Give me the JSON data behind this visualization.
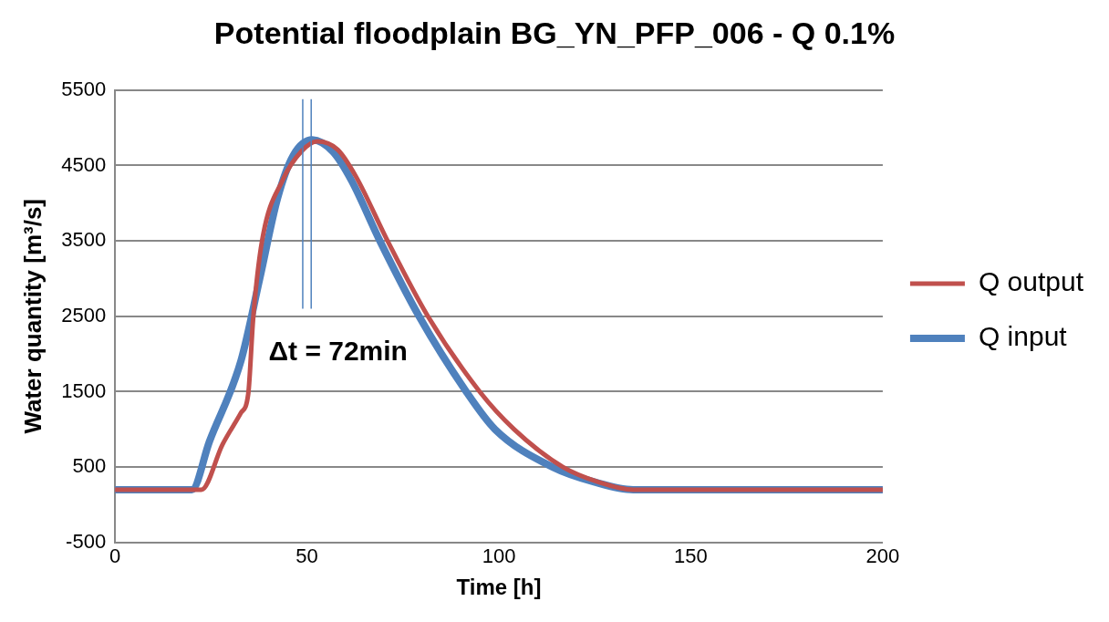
{
  "chart_data": {
    "type": "line",
    "title": "Potential floodplain BG_YN_PFP_006 - Q 0.1%",
    "xlabel": "Time [h]",
    "ylabel": "Water quantity [m³/s]",
    "xlim": [
      0,
      200
    ],
    "xticks": [
      0,
      50,
      100,
      150,
      200
    ],
    "ylim": [
      -500,
      5500
    ],
    "yticks": [
      -500,
      500,
      1500,
      2500,
      3500,
      4500,
      5500
    ],
    "grid": "y",
    "legend": "right",
    "marker": "none",
    "line_style": "solid",
    "annotations": [
      "Δt = 72min"
    ],
    "ref_lines": [
      {
        "axis": "x",
        "value": 48.9,
        "color": "#4f81bd"
      },
      {
        "axis": "x",
        "value": 51.1,
        "color": "#4f81bd"
      }
    ],
    "series": [
      {
        "name": "Q input",
        "color": "#4f81bd",
        "x": [
          0,
          20,
          24.6,
          32.8,
          37.7,
          42.3,
          46.4,
          51.4,
          56.8,
          61.5,
          69,
          79.2,
          91.5,
          99,
          114,
          125,
          135,
          200
        ],
        "values": [
          200,
          200,
          840,
          1910,
          3000,
          4060,
          4630,
          4840,
          4680,
          4310,
          3500,
          2500,
          1500,
          1000,
          500,
          300,
          200,
          200
        ]
      },
      {
        "name": "Q output",
        "color": "#c0504d",
        "x": [
          0,
          22.5,
          28,
          32.8,
          34.7,
          36,
          38.3,
          43.7,
          48.6,
          52.7,
          58,
          62.8,
          71,
          81.5,
          95,
          104,
          116.7,
          126,
          135,
          200
        ],
        "values": [
          200,
          200,
          800,
          1220,
          1470,
          2480,
          3500,
          4310,
          4690,
          4820,
          4710,
          4350,
          3500,
          2500,
          1500,
          1000,
          500,
          300,
          200,
          200
        ]
      }
    ]
  }
}
